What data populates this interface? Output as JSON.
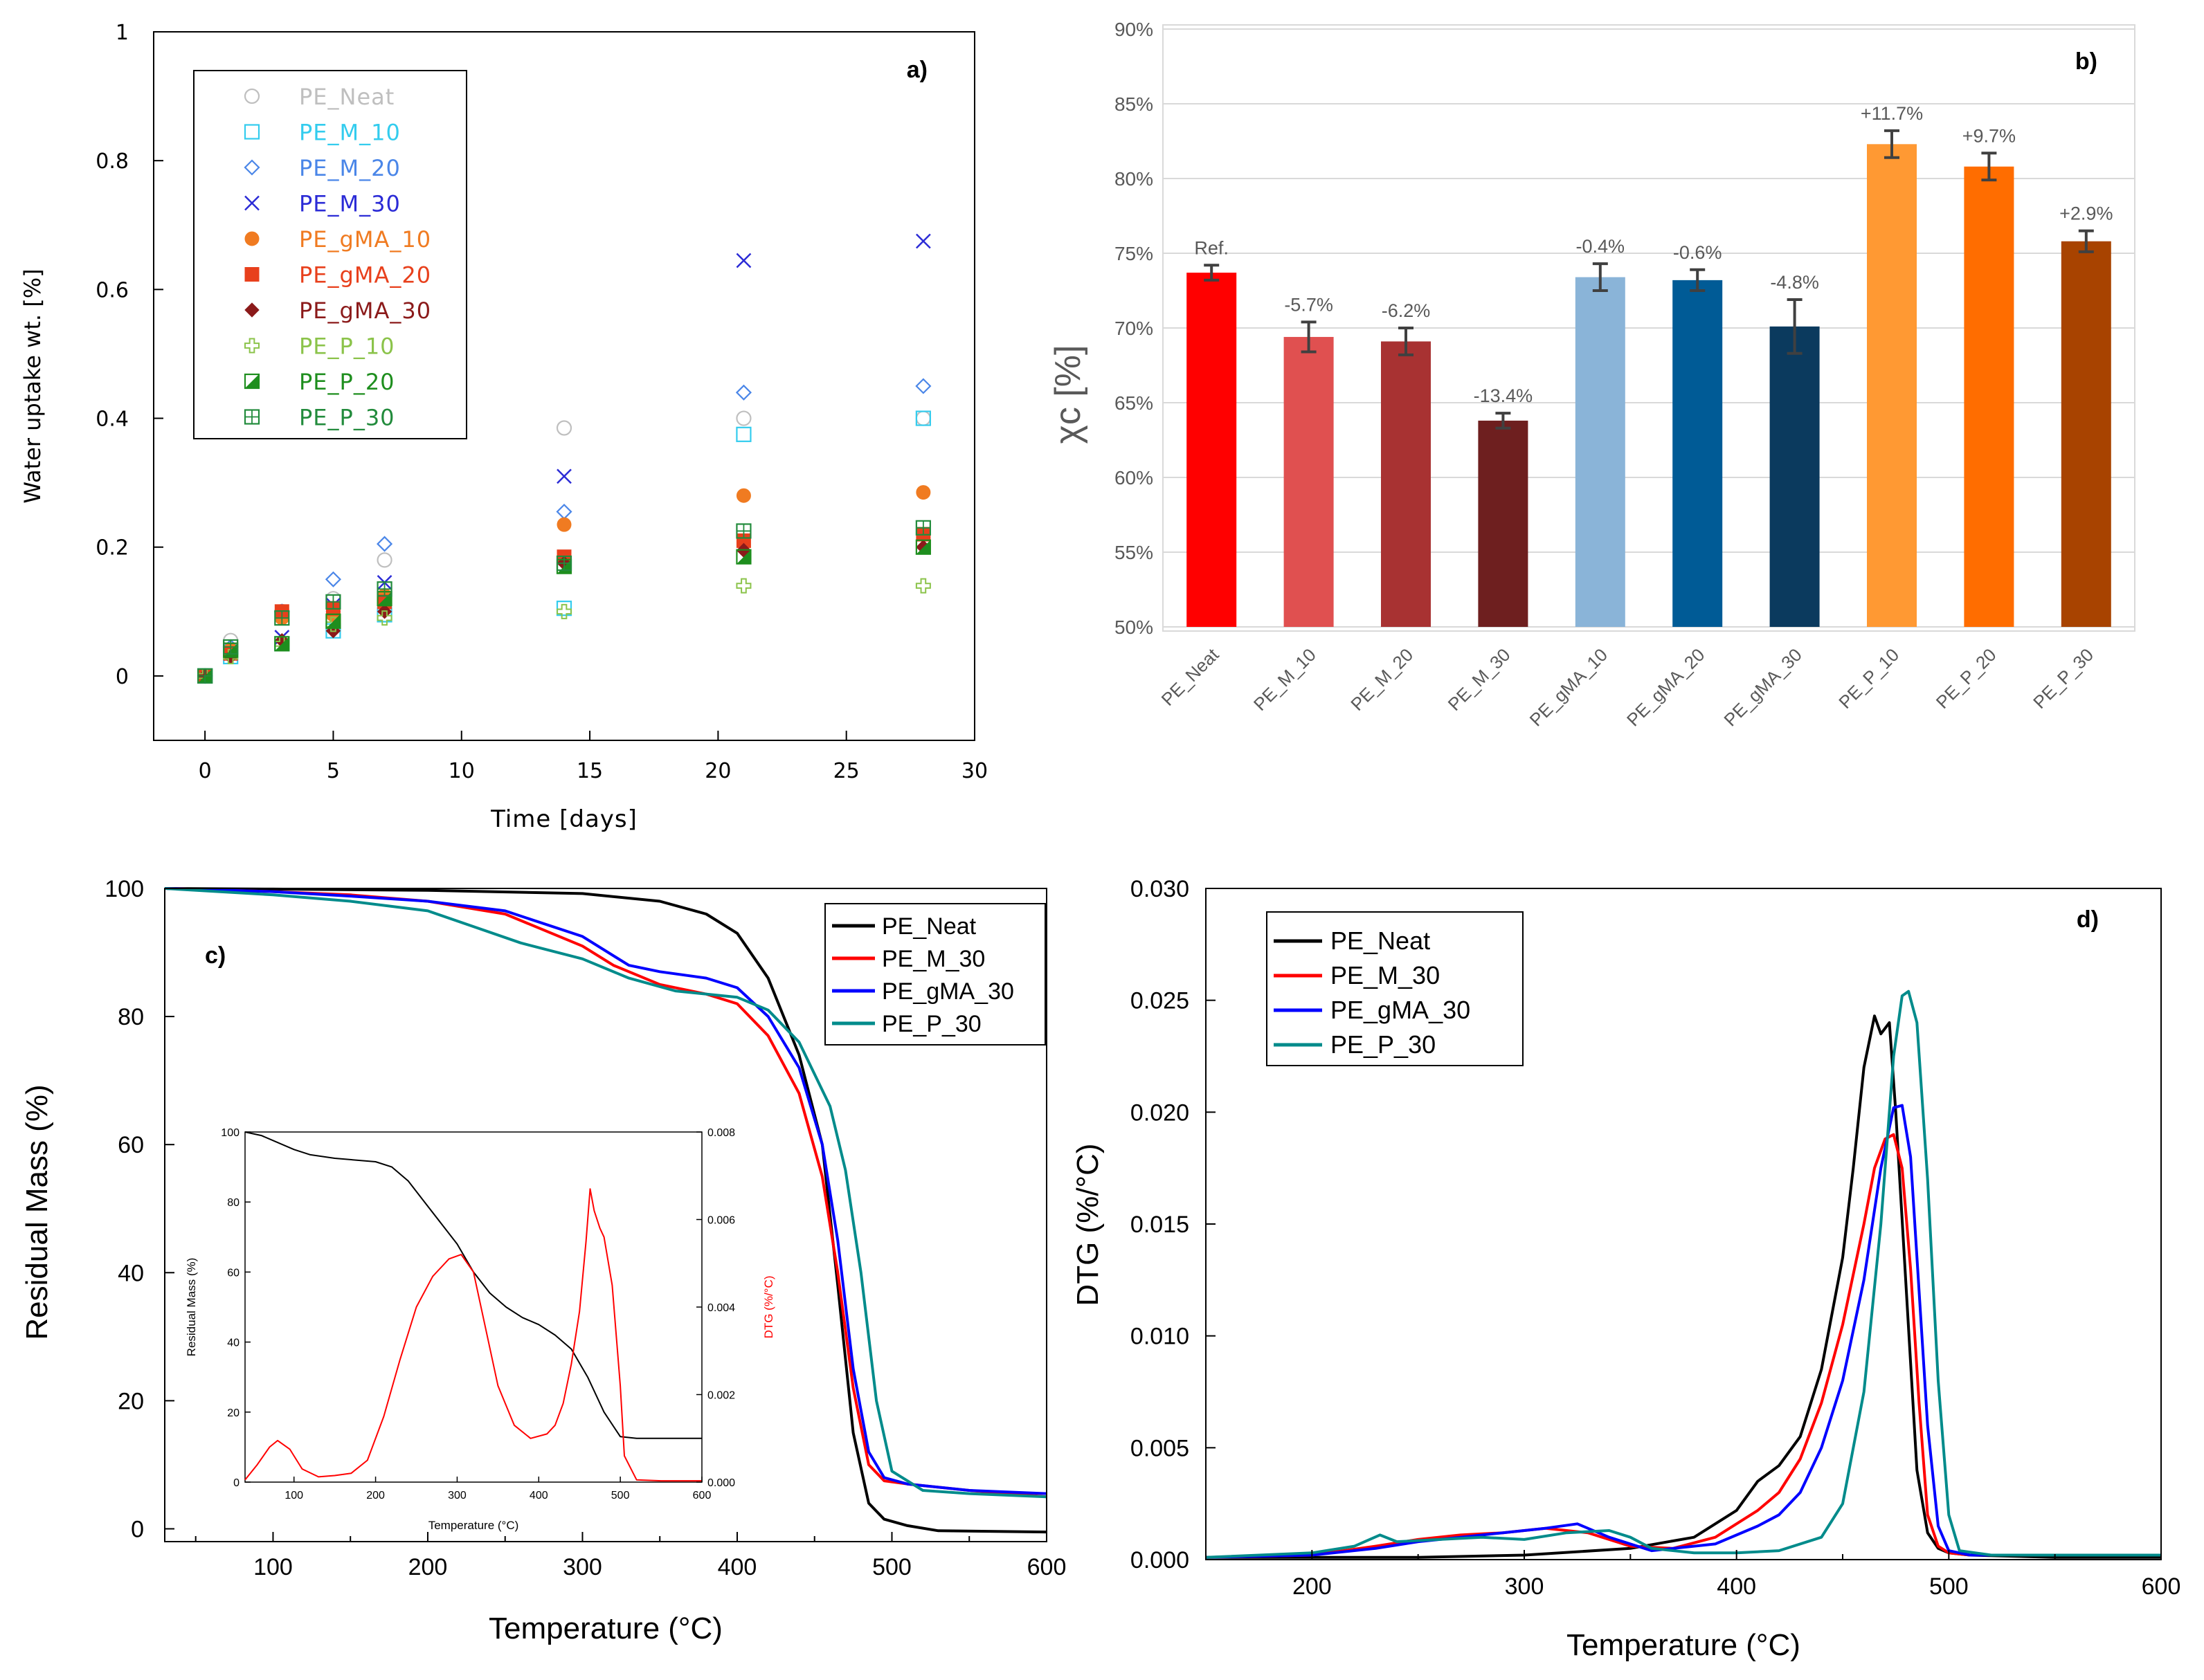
{
  "chart_data": [
    {
      "id": "a",
      "type": "scatter",
      "panel_label": "a)",
      "xlabel": "Time [days]",
      "ylabel": "Water uptake wt. [%]",
      "xlim": [
        -2,
        30
      ],
      "ylim": [
        -0.1,
        1.0
      ],
      "xticks": [
        0,
        5,
        10,
        15,
        20,
        25,
        30
      ],
      "yticks": [
        0,
        0.2,
        0.4,
        0.6,
        0.8,
        1
      ],
      "xtick_labels": [
        "0",
        "5",
        "10",
        "15",
        "20",
        "25",
        "30"
      ],
      "ytick_labels": [
        "0",
        "0.2",
        "0.4",
        "0.6",
        "0.8",
        "1"
      ],
      "legend_position": "top-left",
      "series": [
        {
          "name": "PE_Neat",
          "color": "#bfbfbf",
          "marker": "circle-open",
          "x": [
            0,
            1,
            3,
            5,
            7,
            14,
            21,
            28
          ],
          "y": [
            0,
            0.055,
            0.1,
            0.12,
            0.18,
            0.385,
            0.4,
            0.4
          ]
        },
        {
          "name": "PE_M_10",
          "color": "#33ccee",
          "marker": "square-open",
          "x": [
            0,
            1,
            3,
            5,
            7,
            14,
            21,
            28
          ],
          "y": [
            0,
            0.03,
            0.05,
            0.07,
            0.095,
            0.105,
            0.375,
            0.4
          ]
        },
        {
          "name": "PE_M_20",
          "color": "#4a86e8",
          "marker": "diamond-open",
          "x": [
            0,
            1,
            3,
            5,
            7,
            14,
            21,
            28
          ],
          "y": [
            0,
            0.045,
            0.1,
            0.15,
            0.205,
            0.255,
            0.44,
            0.45
          ]
        },
        {
          "name": "PE_M_30",
          "color": "#2b2bd6",
          "marker": "x",
          "x": [
            0,
            1,
            3,
            5,
            7,
            14,
            21,
            28
          ],
          "y": [
            0,
            0.035,
            0.06,
            0.11,
            0.145,
            0.31,
            0.645,
            0.675
          ]
        },
        {
          "name": "PE_gMA_10",
          "color": "#f07b21",
          "marker": "circle",
          "x": [
            0,
            1,
            3,
            5,
            7,
            14,
            21,
            28
          ],
          "y": [
            0,
            0.04,
            0.09,
            0.095,
            0.125,
            0.235,
            0.28,
            0.285
          ]
        },
        {
          "name": "PE_gMA_20",
          "color": "#e8401c",
          "marker": "square",
          "x": [
            0,
            1,
            3,
            5,
            7,
            14,
            21,
            28
          ],
          "y": [
            0,
            0.035,
            0.1,
            0.105,
            0.115,
            0.185,
            0.21,
            0.22
          ]
        },
        {
          "name": "PE_gMA_30",
          "color": "#8b1a1a",
          "marker": "diamond",
          "x": [
            0,
            1,
            3,
            5,
            7,
            14,
            21,
            28
          ],
          "y": [
            0,
            0.03,
            0.055,
            0.07,
            0.1,
            0.175,
            0.195,
            0.2
          ]
        },
        {
          "name": "PE_P_10",
          "color": "#8bc34a",
          "marker": "plus-open",
          "x": [
            0,
            1,
            3,
            5,
            7,
            14,
            21,
            28
          ],
          "y": [
            0,
            0.03,
            0.05,
            0.08,
            0.09,
            0.1,
            0.14,
            0.14
          ]
        },
        {
          "name": "PE_P_20",
          "color": "#1e8e1e",
          "marker": "square-half",
          "x": [
            0,
            1,
            3,
            5,
            7,
            14,
            21,
            28
          ],
          "y": [
            0,
            0.04,
            0.05,
            0.085,
            0.12,
            0.17,
            0.185,
            0.2
          ]
        },
        {
          "name": "PE_P_30",
          "color": "#228b3c",
          "marker": "square-grid",
          "x": [
            0,
            1,
            3,
            5,
            7,
            14,
            21,
            28
          ],
          "y": [
            0,
            0.045,
            0.09,
            0.115,
            0.135,
            0.175,
            0.225,
            0.23
          ]
        }
      ]
    },
    {
      "id": "b",
      "type": "bar",
      "panel_label": "b)",
      "ylabel": "χc [%]",
      "ylim": [
        50,
        90
      ],
      "yticks": [
        50,
        55,
        60,
        65,
        70,
        75,
        80,
        85,
        90
      ],
      "ytick_labels": [
        "50%",
        "55%",
        "60%",
        "65%",
        "70%",
        "75%",
        "80%",
        "85%",
        "90%"
      ],
      "grid": true,
      "categories": [
        "PE_Neat",
        "PE_M_10",
        "PE_M_20",
        "PE_M_30",
        "PE_gMA_10",
        "PE_gMA_20",
        "PE_gMA_30",
        "PE_P_10",
        "PE_P_20",
        "PE_P_30"
      ],
      "values": [
        73.7,
        69.4,
        69.1,
        63.8,
        73.4,
        73.2,
        70.1,
        82.3,
        80.8,
        75.8
      ],
      "errors": [
        0.5,
        1.0,
        0.9,
        0.5,
        0.9,
        0.7,
        1.8,
        0.9,
        0.9,
        0.7
      ],
      "colors": [
        "#ff0000",
        "#e05050",
        "#a83232",
        "#6e1f1f",
        "#8ab4d8",
        "#005b96",
        "#0b3a5e",
        "#ff9933",
        "#ff6d00",
        "#a84300"
      ],
      "bar_labels": [
        "Ref.",
        "-5.7%",
        "-6.2%",
        "-13.4%",
        "-0.4%",
        "-0.6%",
        "-4.8%",
        "+11.7%",
        "+9.7%",
        "+2.9%"
      ]
    },
    {
      "id": "c",
      "type": "line",
      "panel_label": "c)",
      "xlabel": "Temperature (°C)",
      "ylabel": "Residual Mass (%)",
      "xlim": [
        30,
        600
      ],
      "ylim": [
        -2,
        100
      ],
      "xticks": [
        100,
        200,
        300,
        400,
        500,
        600
      ],
      "yticks": [
        0,
        20,
        40,
        60,
        80,
        100
      ],
      "xtick_labels": [
        "100",
        "200",
        "300",
        "400",
        "500",
        "600"
      ],
      "ytick_labels": [
        "0",
        "20",
        "40",
        "60",
        "80",
        "100"
      ],
      "legend_position": "top-right",
      "series": [
        {
          "name": "PE_Neat",
          "color": "#000000",
          "x": [
            30,
            100,
            200,
            300,
            350,
            380,
            400,
            420,
            440,
            455,
            465,
            475,
            485,
            495,
            510,
            530,
            600
          ],
          "y": [
            100,
            99.9,
            99.7,
            99.2,
            98,
            96,
            93,
            86,
            74,
            60,
            38,
            15,
            4,
            1.5,
            0.5,
            -0.3,
            -0.5
          ]
        },
        {
          "name": "PE_M_30",
          "color": "#ff0000",
          "x": [
            30,
            100,
            150,
            200,
            250,
            300,
            320,
            350,
            380,
            400,
            420,
            440,
            455,
            465,
            475,
            485,
            495,
            510,
            550,
            600
          ],
          "y": [
            100,
            99.5,
            99,
            98,
            96,
            91,
            88,
            85,
            83.5,
            82,
            77,
            68,
            55,
            40,
            22,
            10,
            7.5,
            7,
            6,
            5
          ]
        },
        {
          "name": "PE_gMA_30",
          "color": "#0000ff",
          "x": [
            30,
            100,
            150,
            200,
            250,
            300,
            330,
            350,
            380,
            400,
            420,
            440,
            455,
            465,
            475,
            485,
            495,
            510,
            550,
            600
          ],
          "y": [
            100,
            99.5,
            98.8,
            98,
            96.5,
            92.5,
            88,
            87,
            86,
            84.5,
            80,
            72,
            60,
            45,
            25,
            12,
            8,
            7,
            6,
            5.5
          ]
        },
        {
          "name": "PE_P_30",
          "color": "#008b8b",
          "x": [
            30,
            100,
            150,
            200,
            230,
            260,
            300,
            330,
            360,
            400,
            420,
            440,
            460,
            470,
            480,
            490,
            500,
            520,
            550,
            600
          ],
          "y": [
            100,
            99,
            98,
            96.5,
            94,
            91.5,
            89,
            86,
            84,
            83,
            81,
            76,
            66,
            56,
            40,
            20,
            9,
            6,
            5.5,
            5
          ]
        }
      ],
      "inset": {
        "xlabel": "Temperature (°C)",
        "ylabel": "Residual Mass (%)",
        "ylabel_right": "DTG (%/°C)",
        "xlim": [
          40,
          600
        ],
        "ylim": [
          0,
          100
        ],
        "ylim_right": [
          0,
          0.008
        ],
        "xticks": [
          100,
          200,
          300,
          400,
          500,
          600
        ],
        "yticks": [
          0,
          20,
          40,
          60,
          80,
          100
        ],
        "yticks_right": [
          0,
          0.002,
          0.004,
          0.006,
          0.008
        ],
        "xtick_labels": [
          "100",
          "200",
          "300",
          "400",
          "500",
          "600"
        ],
        "ytick_labels": [
          "0",
          "20",
          "40",
          "60",
          "80",
          "100"
        ],
        "ytick_labels_right": [
          "0.000",
          "0.002",
          "0.004",
          "0.006",
          "0.008"
        ],
        "series": [
          {
            "name": "Residual Mass",
            "color": "#000000",
            "axis": "left",
            "x": [
              40,
              60,
              80,
              100,
              120,
              150,
              200,
              220,
              240,
              260,
              280,
              300,
              320,
              340,
              360,
              380,
              400,
              420,
              440,
              460,
              480,
              500,
              520,
              550,
              600
            ],
            "y": [
              100,
              99,
              97,
              95,
              93.5,
              92.5,
              91.5,
              90,
              86,
              80,
              74,
              68,
              60,
              54,
              50,
              47,
              45,
              42,
              38,
              30,
              20,
              13,
              12.5,
              12.5,
              12.5
            ]
          },
          {
            "name": "DTG",
            "color": "#ff0000",
            "axis": "right",
            "x": [
              40,
              55,
              70,
              80,
              95,
              110,
              130,
              150,
              170,
              190,
              210,
              230,
              250,
              270,
              290,
              305,
              320,
              335,
              350,
              370,
              390,
              410,
              420,
              430,
              440,
              450,
              458,
              463,
              468,
              475,
              480,
              490,
              500,
              505,
              520,
              550,
              600
            ],
            "y": [
              5e-05,
              0.0004,
              0.0008,
              0.00095,
              0.00075,
              0.0003,
              0.00012,
              0.00015,
              0.0002,
              0.0005,
              0.0015,
              0.0028,
              0.004,
              0.0047,
              0.0051,
              0.0052,
              0.0048,
              0.0035,
              0.0022,
              0.0013,
              0.001,
              0.0011,
              0.0013,
              0.0018,
              0.0027,
              0.0039,
              0.0055,
              0.0067,
              0.0062,
              0.0058,
              0.0056,
              0.0045,
              0.0022,
              0.0006,
              5e-05,
              3e-05,
              3e-05
            ]
          }
        ]
      }
    },
    {
      "id": "d",
      "type": "line",
      "panel_label": "d)",
      "xlabel": "Temperature (°C)",
      "ylabel": "DTG (%/°C)",
      "xlim": [
        150,
        600
      ],
      "ylim": [
        0,
        0.03
      ],
      "xticks": [
        200,
        300,
        400,
        500,
        600
      ],
      "yticks": [
        0,
        0.005,
        0.01,
        0.015,
        0.02,
        0.025,
        0.03
      ],
      "xtick_labels": [
        "200",
        "300",
        "400",
        "500",
        "600"
      ],
      "ytick_labels": [
        "0.000",
        "0.005",
        "0.010",
        "0.015",
        "0.020",
        "0.025",
        "0.030"
      ],
      "legend_position": "top-left",
      "series": [
        {
          "name": "PE_Neat",
          "color": "#000000",
          "x": [
            150,
            250,
            300,
            350,
            380,
            400,
            410,
            420,
            430,
            440,
            450,
            455,
            460,
            465,
            468,
            472,
            475,
            480,
            485,
            490,
            495,
            500,
            510,
            550,
            600
          ],
          "y": [
            0.0001,
            0.0001,
            0.0002,
            0.0005,
            0.001,
            0.0022,
            0.0035,
            0.0042,
            0.0055,
            0.0085,
            0.0135,
            0.0175,
            0.022,
            0.0243,
            0.0235,
            0.024,
            0.02,
            0.012,
            0.004,
            0.0012,
            0.0005,
            0.0003,
            0.0002,
            0.0001,
            0.0001
          ]
        },
        {
          "name": "PE_M_30",
          "color": "#ff0000",
          "x": [
            150,
            200,
            230,
            250,
            270,
            290,
            310,
            330,
            350,
            370,
            390,
            410,
            420,
            430,
            440,
            450,
            460,
            465,
            470,
            474,
            478,
            482,
            486,
            490,
            495,
            500,
            510,
            600
          ],
          "y": [
            0.0001,
            0.0002,
            0.0006,
            0.0009,
            0.0011,
            0.0012,
            0.0014,
            0.0012,
            0.0006,
            0.0005,
            0.001,
            0.0022,
            0.003,
            0.0045,
            0.007,
            0.0105,
            0.015,
            0.0175,
            0.0188,
            0.019,
            0.0175,
            0.013,
            0.007,
            0.002,
            0.0006,
            0.0003,
            0.0002,
            0.0002
          ]
        },
        {
          "name": "PE_gMA_30",
          "color": "#0000ff",
          "x": [
            150,
            200,
            230,
            250,
            270,
            290,
            310,
            325,
            340,
            360,
            390,
            410,
            420,
            430,
            440,
            450,
            460,
            468,
            474,
            478,
            482,
            486,
            490,
            495,
            500,
            510,
            600
          ],
          "y": [
            0.0001,
            0.0002,
            0.0005,
            0.0008,
            0.001,
            0.0012,
            0.0014,
            0.0016,
            0.001,
            0.0004,
            0.0007,
            0.0015,
            0.002,
            0.003,
            0.005,
            0.008,
            0.0125,
            0.0175,
            0.0202,
            0.0203,
            0.018,
            0.012,
            0.006,
            0.0015,
            0.0004,
            0.0002,
            0.0002
          ]
        },
        {
          "name": "PE_P_30",
          "color": "#008b8b",
          "x": [
            150,
            200,
            220,
            232,
            240,
            260,
            280,
            300,
            320,
            340,
            350,
            360,
            380,
            400,
            420,
            440,
            450,
            460,
            468,
            474,
            478,
            481,
            485,
            490,
            495,
            500,
            505,
            520,
            600
          ],
          "y": [
            0.0001,
            0.0003,
            0.0006,
            0.0011,
            0.0008,
            0.0009,
            0.001,
            0.0009,
            0.0012,
            0.0013,
            0.001,
            0.0005,
            0.0003,
            0.0003,
            0.0004,
            0.001,
            0.0025,
            0.0075,
            0.015,
            0.0225,
            0.0252,
            0.0254,
            0.024,
            0.017,
            0.008,
            0.002,
            0.0004,
            0.0002,
            0.0002
          ]
        }
      ]
    }
  ]
}
